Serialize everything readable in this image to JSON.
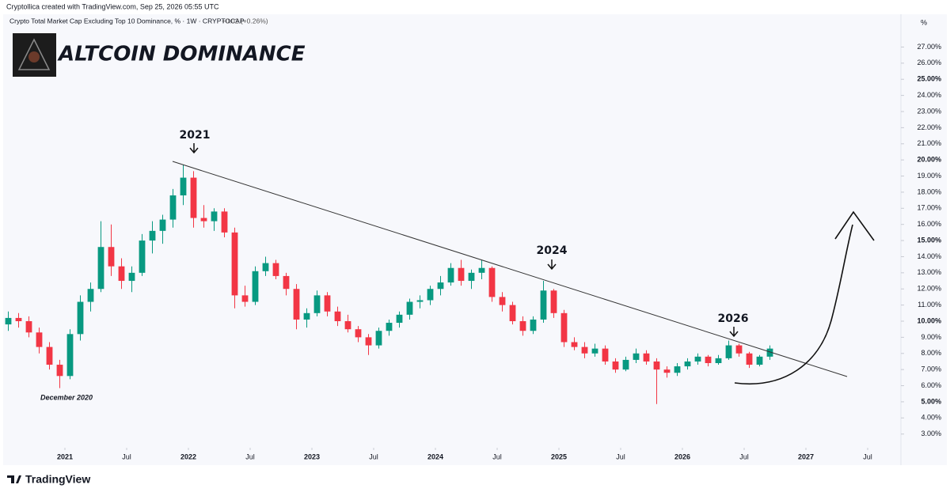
{
  "header": "Cryptollica created with TradingView.com, Sep 25, 2026 05:55 UTC",
  "footer": "TradingView",
  "chart_data": {
    "type": "candlestick",
    "title": "Crypto Total Market Cap Excluding Top 10 Dominance, % · 1W · CRYPTOCAP",
    "change": "+0.02 (+0.26%)",
    "overlay_title": "ALTCOIN DOMINANCE",
    "y_unit": "%",
    "annotations": [
      "2021",
      "2024",
      "2026",
      "December 2020"
    ],
    "up_color": "#089981",
    "down_color": "#f23645",
    "x": [
      "2020-07",
      "2020-08",
      "2020-09",
      "2020-10",
      "2020-11",
      "2020-12",
      "2021-01",
      "2021-02",
      "2021-03",
      "2021-04",
      "2021-05",
      "2021-06",
      "2021-07",
      "2021-08",
      "2021-09",
      "2021-10",
      "2021-11",
      "2021-12",
      "2022-01",
      "2022-02",
      "2022-03",
      "2022-04",
      "2022-05",
      "2022-06",
      "2022-07",
      "2022-08",
      "2022-09",
      "2022-10",
      "2022-11",
      "2022-12",
      "2023-01",
      "2023-02",
      "2023-03",
      "2023-04",
      "2023-05",
      "2023-06",
      "2023-07",
      "2023-08",
      "2023-09",
      "2023-10",
      "2023-11",
      "2023-12",
      "2024-01",
      "2024-02",
      "2024-03",
      "2024-04",
      "2024-05",
      "2024-06",
      "2024-07",
      "2024-08",
      "2024-09",
      "2024-10",
      "2024-11",
      "2024-12",
      "2025-01",
      "2025-02",
      "2025-03",
      "2025-04",
      "2025-05",
      "2025-06",
      "2025-07",
      "2025-08",
      "2025-09",
      "2025-10",
      "2025-11",
      "2025-12",
      "2026-01",
      "2026-02",
      "2026-03",
      "2026-04",
      "2026-05",
      "2026-06",
      "2026-07",
      "2026-08",
      "2026-09"
    ],
    "open": [
      9.8,
      10.2,
      10.0,
      9.3,
      8.4,
      7.3,
      6.6,
      9.2,
      11.2,
      12.0,
      14.6,
      13.4,
      12.5,
      13.0,
      15.0,
      15.6,
      16.3,
      17.8,
      18.9,
      16.4,
      16.2,
      16.8,
      15.5,
      11.6,
      11.2,
      13.1,
      13.6,
      12.8,
      12.0,
      10.1,
      10.5,
      11.6,
      10.6,
      10.0,
      9.5,
      9.0,
      8.5,
      9.4,
      9.9,
      10.4,
      11.2,
      11.3,
      12.0,
      12.4,
      13.3,
      12.5,
      13.0,
      13.3,
      11.5,
      11.0,
      10.0,
      9.4,
      10.1,
      11.9,
      10.5,
      8.7,
      8.4,
      8.0,
      8.3,
      7.5,
      7.0,
      7.6,
      8.0,
      7.5,
      7.0,
      6.8,
      7.2,
      7.5,
      7.8,
      7.4,
      7.7,
      8.5,
      8.0,
      7.3,
      7.8
    ],
    "high": [
      10.6,
      10.5,
      10.3,
      9.6,
      8.7,
      7.6,
      9.5,
      11.6,
      12.4,
      16.2,
      16.0,
      13.9,
      13.4,
      15.4,
      16.2,
      16.6,
      18.2,
      19.7,
      19.3,
      17.2,
      17.0,
      17.0,
      15.8,
      12.2,
      13.4,
      14.0,
      13.8,
      13.0,
      12.3,
      10.8,
      11.9,
      11.8,
      10.9,
      10.4,
      9.7,
      9.2,
      9.6,
      10.1,
      10.6,
      11.4,
      11.6,
      12.2,
      12.8,
      13.6,
      13.8,
      13.2,
      13.8,
      13.4,
      11.8,
      11.2,
      10.3,
      10.3,
      12.5,
      12.0,
      10.7,
      9.0,
      8.7,
      8.6,
      8.5,
      7.7,
      7.8,
      8.3,
      8.2,
      7.7,
      7.2,
      7.4,
      7.7,
      8.0,
      7.9,
      7.9,
      8.8,
      8.6,
      8.1,
      7.9,
      8.5
    ],
    "low": [
      9.4,
      9.6,
      9.0,
      8.0,
      7.0,
      5.85,
      6.4,
      8.8,
      10.6,
      11.8,
      12.8,
      12.0,
      11.8,
      12.8,
      14.2,
      14.8,
      15.8,
      17.2,
      15.8,
      15.8,
      15.6,
      15.2,
      10.8,
      10.9,
      11.0,
      12.8,
      12.6,
      11.6,
      9.5,
      9.6,
      10.3,
      10.3,
      9.7,
      9.3,
      8.7,
      7.9,
      8.3,
      9.1,
      9.6,
      10.1,
      10.8,
      11.0,
      11.6,
      12.2,
      12.2,
      12.0,
      12.6,
      11.2,
      10.6,
      9.8,
      9.1,
      9.2,
      9.9,
      10.2,
      8.4,
      8.2,
      7.7,
      7.8,
      7.3,
      6.8,
      6.9,
      7.4,
      7.3,
      4.86,
      6.5,
      6.6,
      7.0,
      7.3,
      7.2,
      7.3,
      7.6,
      7.8,
      7.1,
      7.2,
      7.6
    ],
    "close": [
      10.2,
      10.0,
      9.3,
      8.4,
      7.3,
      6.6,
      9.2,
      11.2,
      12.0,
      14.6,
      13.4,
      12.5,
      13.0,
      15.0,
      15.6,
      16.3,
      17.8,
      18.9,
      16.4,
      16.2,
      16.8,
      15.5,
      11.6,
      11.2,
      13.1,
      13.6,
      12.8,
      12.0,
      10.1,
      10.5,
      11.6,
      10.6,
      10.0,
      9.5,
      9.0,
      8.5,
      9.4,
      9.9,
      10.4,
      11.2,
      11.3,
      12.0,
      12.4,
      13.3,
      12.5,
      13.0,
      13.3,
      11.5,
      11.0,
      10.0,
      9.4,
      10.1,
      11.9,
      10.5,
      8.7,
      8.4,
      8.0,
      8.3,
      7.5,
      7.0,
      7.6,
      8.0,
      7.5,
      7.0,
      6.8,
      7.2,
      7.5,
      7.8,
      7.4,
      7.7,
      8.5,
      8.0,
      7.3,
      7.8,
      8.3
    ],
    "xlim": [
      "2020-07",
      "2027-10"
    ],
    "xticks": [
      {
        "value": "2021-01",
        "label": "2021"
      },
      {
        "value": "2021-07",
        "label": "Jul"
      },
      {
        "value": "2022-01",
        "label": "2022"
      },
      {
        "value": "2022-07",
        "label": "Jul"
      },
      {
        "value": "2023-01",
        "label": "2023"
      },
      {
        "value": "2023-07",
        "label": "Jul"
      },
      {
        "value": "2024-01",
        "label": "2024"
      },
      {
        "value": "2024-07",
        "label": "Jul"
      },
      {
        "value": "2025-01",
        "label": "2025"
      },
      {
        "value": "2025-07",
        "label": "Jul"
      },
      {
        "value": "2026-01",
        "label": "2026"
      },
      {
        "value": "2026-07",
        "label": "Jul"
      },
      {
        "value": "2027-01",
        "label": "2027"
      },
      {
        "value": "2027-07",
        "label": "Jul"
      }
    ],
    "ylim": [
      2.2,
      28.2
    ],
    "yticks": [
      {
        "value": 3,
        "label": "3.00%"
      },
      {
        "value": 4,
        "label": "4.00%"
      },
      {
        "value": 5,
        "label": "5.00%"
      },
      {
        "value": 6,
        "label": "6.00%"
      },
      {
        "value": 7,
        "label": "7.00%"
      },
      {
        "value": 8,
        "label": "8.00%"
      },
      {
        "value": 9,
        "label": "9.00%"
      },
      {
        "value": 10,
        "label": "10.00%"
      },
      {
        "value": 11,
        "label": "11.00%"
      },
      {
        "value": 12,
        "label": "12.00%"
      },
      {
        "value": 13,
        "label": "13.00%"
      },
      {
        "value": 14,
        "label": "14.00%"
      },
      {
        "value": 15,
        "label": "15.00%"
      },
      {
        "value": 16,
        "label": "16.00%"
      },
      {
        "value": 17,
        "label": "17.00%"
      },
      {
        "value": 18,
        "label": "18.00%"
      },
      {
        "value": 19,
        "label": "19.00%"
      },
      {
        "value": 20,
        "label": "20.00%"
      },
      {
        "value": 21,
        "label": "21.00%"
      },
      {
        "value": 22,
        "label": "22.00%"
      },
      {
        "value": 23,
        "label": "23.00%"
      },
      {
        "value": 24,
        "label": "24.00%"
      },
      {
        "value": 25,
        "label": "25.00%"
      },
      {
        "value": 26,
        "label": "26.00%"
      },
      {
        "value": 27,
        "label": "27.00%"
      }
    ],
    "grid": false
  }
}
